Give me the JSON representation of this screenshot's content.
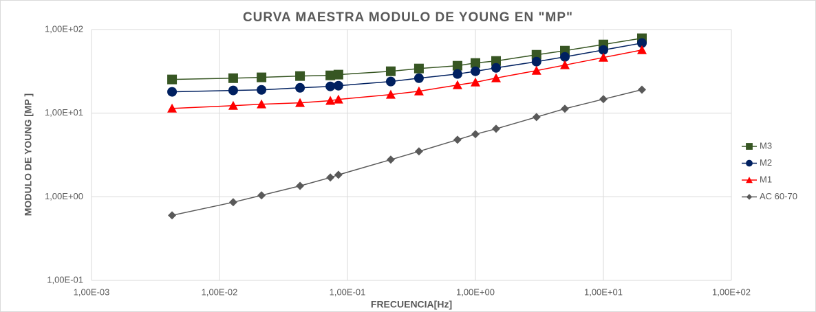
{
  "chart_data": {
    "type": "line",
    "title": "CURVA MAESTRA MODULO DE YOUNG EN \"MP\"",
    "xlabel": "FRECUENCIA[Hz]",
    "ylabel": "MODULO DE YOUNG  [MP  ]",
    "xscale": "log",
    "yscale": "log",
    "grid": true,
    "legend": "right",
    "xlim": [
      0.001,
      100
    ],
    "ylim": [
      0.1,
      100
    ],
    "xticks": [
      {
        "value": 0.001,
        "label": "1,00E-03"
      },
      {
        "value": 0.01,
        "label": "1,00E-02"
      },
      {
        "value": 0.1,
        "label": "1,00E-01"
      },
      {
        "value": 1,
        "label": "1,00E+00"
      },
      {
        "value": 10,
        "label": "1,00E+01"
      },
      {
        "value": 100,
        "label": "1,00E+02"
      }
    ],
    "yticks": [
      {
        "value": 0.1,
        "label": "1,00E-01"
      },
      {
        "value": 1,
        "label": "1,00E+00"
      },
      {
        "value": 10,
        "label": "1,00E+01"
      },
      {
        "value": 100,
        "label": "1,00E+02"
      }
    ],
    "x": [
      0.00426,
      0.0128,
      0.0213,
      0.0426,
      0.0735,
      0.085,
      0.218,
      0.362,
      0.724,
      1.0,
      1.45,
      3.0,
      5.0,
      10,
      20
    ],
    "series": [
      {
        "name": "M3",
        "color": "#375623",
        "marker": "square",
        "values": [
          25.3,
          26.2,
          26.8,
          27.8,
          28.3,
          28.9,
          31.7,
          34.2,
          36.9,
          39.8,
          42.1,
          49.9,
          55.9,
          66.3,
          78.7
        ]
      },
      {
        "name": "M2",
        "color": "#002060",
        "marker": "circle",
        "values": [
          18.0,
          18.7,
          19.0,
          20.1,
          20.9,
          21.3,
          23.9,
          26.2,
          29.4,
          31.7,
          34.8,
          41.3,
          47.1,
          57.0,
          68.9
        ]
      },
      {
        "name": "M1",
        "color": "#ff0000",
        "marker": "triangle",
        "values": [
          11.4,
          12.3,
          12.8,
          13.3,
          14.1,
          14.6,
          16.7,
          18.3,
          21.7,
          23.4,
          26.3,
          32.3,
          37.6,
          46.3,
          57.0
        ]
      },
      {
        "name": "AC 60-70",
        "color": "#595959",
        "marker": "diamond",
        "values": [
          0.6,
          0.86,
          1.04,
          1.35,
          1.7,
          1.83,
          2.78,
          3.49,
          4.81,
          5.6,
          6.5,
          8.98,
          11.3,
          14.7,
          19.1
        ]
      }
    ]
  }
}
